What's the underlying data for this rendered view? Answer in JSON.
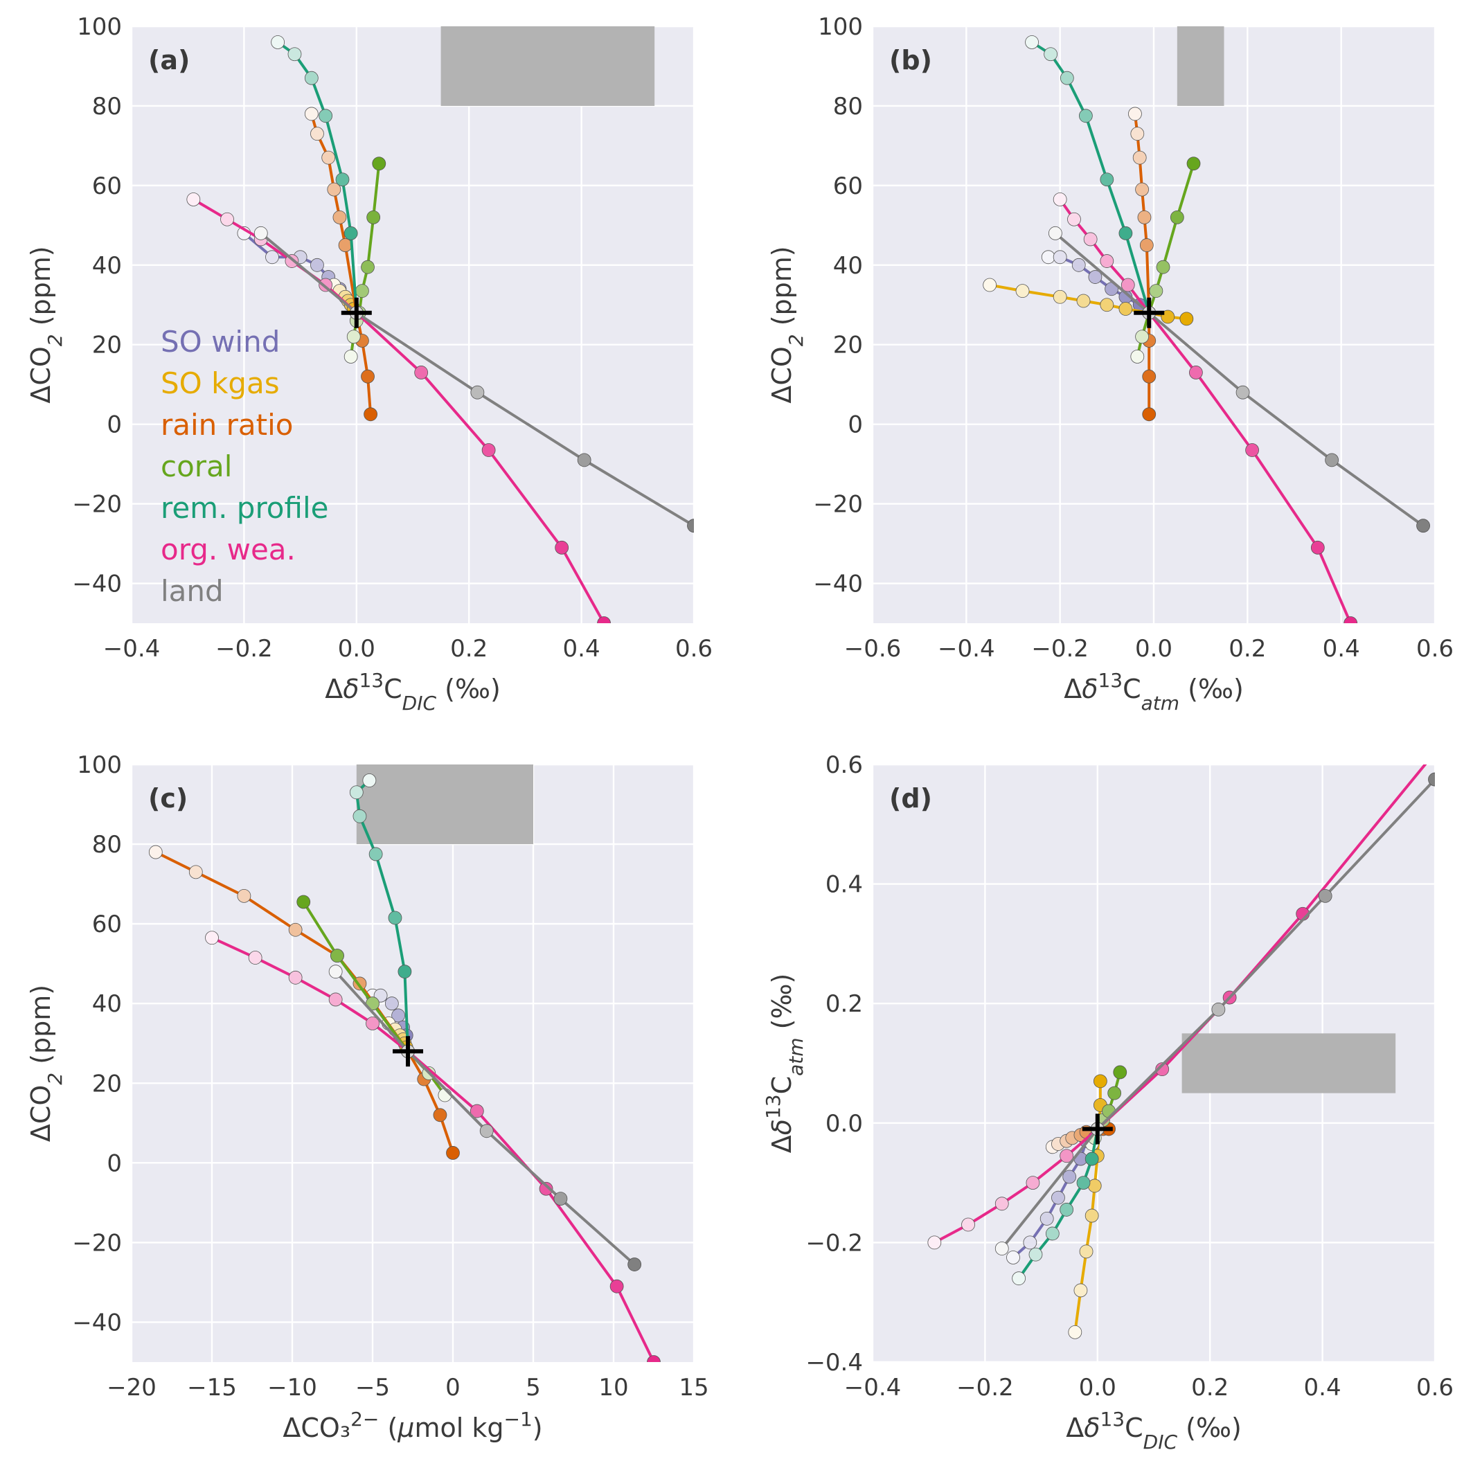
{
  "colors": {
    "so_wind": "#7570b3",
    "so_kgas": "#e6ab02",
    "rain_ratio": "#d95f02",
    "coral": "#66a61e",
    "rem_profile": "#1b9e77",
    "org_wea": "#e7298a",
    "land": "#808080",
    "panel_bg": "#eaeaf2",
    "grid": "#ffffff",
    "target_box": "#b3b3b3"
  },
  "legend": [
    {
      "key": "so_wind",
      "label": "SO wind"
    },
    {
      "key": "so_kgas",
      "label": "SO kgas"
    },
    {
      "key": "rain_ratio",
      "label": "rain ratio"
    },
    {
      "key": "coral",
      "label": "coral"
    },
    {
      "key": "rem_profile",
      "label": "rem. profile"
    },
    {
      "key": "org_wea",
      "label": "org. wea."
    },
    {
      "key": "land",
      "label": "land"
    }
  ],
  "chart_data": [
    {
      "type": "line",
      "panel_label": "(a)",
      "xlabel": "Δδ¹³C_DIC (‰)",
      "ylabel": "ΔCO₂ (ppm)",
      "xlim": [
        -0.4,
        0.6
      ],
      "ylim": [
        -50,
        100
      ],
      "xticks": [
        -0.4,
        -0.2,
        0.0,
        0.2,
        0.4,
        0.6
      ],
      "xtick_labels": [
        "−0.4",
        "−0.2",
        "0.0",
        "0.2",
        "0.4",
        "0.6"
      ],
      "yticks": [
        -40,
        -20,
        0,
        20,
        40,
        60,
        80,
        100
      ],
      "ytick_labels": [
        "−40",
        "−20",
        "0",
        "20",
        "40",
        "60",
        "80",
        "100"
      ],
      "target_box": {
        "x": [
          0.15,
          0.53
        ],
        "y": [
          80,
          100
        ]
      },
      "reference": {
        "x": 0.0,
        "y": 28
      },
      "show_legend": true,
      "series": [
        {
          "name": "SO wind",
          "x": [
            -0.2,
            -0.15,
            -0.1,
            -0.07,
            -0.05,
            -0.03,
            -0.02,
            -0.01,
            0.0
          ],
          "y": [
            48,
            42,
            42,
            40,
            37,
            34,
            32,
            30,
            28
          ]
        },
        {
          "name": "SO kgas",
          "x": [
            -0.04,
            -0.03,
            -0.02,
            -0.015,
            -0.01,
            -0.005,
            0.0
          ],
          "y": [
            35,
            33.5,
            32,
            31,
            30,
            29,
            28
          ]
        },
        {
          "name": "rain ratio",
          "x": [
            -0.08,
            -0.07,
            -0.05,
            -0.04,
            -0.03,
            -0.02,
            0.0,
            0.01,
            0.02,
            0.025
          ],
          "y": [
            78,
            73,
            67,
            59,
            52,
            45,
            28,
            21,
            12,
            2.5
          ]
        },
        {
          "name": "coral",
          "x": [
            -0.01,
            -0.005,
            0.0,
            0.005,
            0.01,
            0.02,
            0.03,
            0.04
          ],
          "y": [
            17,
            22,
            26,
            28,
            33.5,
            39.5,
            52,
            65.5
          ]
        },
        {
          "name": "rem. profile",
          "x": [
            -0.14,
            -0.11,
            -0.08,
            -0.055,
            -0.025,
            -0.01,
            0.0
          ],
          "y": [
            96,
            93,
            87,
            77.5,
            61.5,
            48,
            28
          ]
        },
        {
          "name": "org. wea.",
          "x": [
            -0.29,
            -0.23,
            -0.17,
            -0.115,
            -0.055,
            0.0,
            0.115,
            0.235,
            0.365,
            0.44
          ],
          "y": [
            56.5,
            51.5,
            46.5,
            41,
            35,
            28,
            13,
            -6.5,
            -31,
            -50
          ]
        },
        {
          "name": "land",
          "x": [
            -0.17,
            0.0,
            0.215,
            0.405,
            0.6
          ],
          "y": [
            48,
            28,
            8,
            -9,
            -25.5
          ]
        }
      ]
    },
    {
      "type": "line",
      "panel_label": "(b)",
      "xlabel": "Δδ¹³C_atm (‰)",
      "ylabel": "ΔCO₂ (ppm)",
      "xlim": [
        -0.6,
        0.6
      ],
      "ylim": [
        -50,
        100
      ],
      "xticks": [
        -0.6,
        -0.4,
        -0.2,
        0.0,
        0.2,
        0.4,
        0.6
      ],
      "xtick_labels": [
        "−0.6",
        "−0.4",
        "−0.2",
        "0.0",
        "0.2",
        "0.4",
        "0.6"
      ],
      "yticks": [
        -40,
        -20,
        0,
        20,
        40,
        60,
        80,
        100
      ],
      "ytick_labels": [
        "−40",
        "−20",
        "0",
        "20",
        "40",
        "60",
        "80",
        "100"
      ],
      "target_box": {
        "x": [
          0.05,
          0.15
        ],
        "y": [
          80,
          100
        ]
      },
      "reference": {
        "x": -0.01,
        "y": 28
      },
      "show_legend": false,
      "series": [
        {
          "name": "SO wind",
          "x": [
            -0.225,
            -0.2,
            -0.16,
            -0.125,
            -0.09,
            -0.06,
            -0.03,
            -0.01
          ],
          "y": [
            42,
            42,
            40,
            37,
            34,
            32,
            30,
            28
          ]
        },
        {
          "name": "SO kgas",
          "x": [
            -0.35,
            -0.28,
            -0.2,
            -0.15,
            -0.1,
            -0.06,
            -0.01,
            0.03,
            0.07
          ],
          "y": [
            35,
            33.5,
            32,
            31,
            30,
            29,
            28,
            27,
            26.5
          ]
        },
        {
          "name": "rain ratio",
          "x": [
            -0.04,
            -0.035,
            -0.03,
            -0.025,
            -0.02,
            -0.015,
            -0.01,
            -0.01,
            -0.01,
            -0.01
          ],
          "y": [
            78,
            73,
            67,
            59,
            52,
            45,
            28,
            21,
            12,
            2.5
          ]
        },
        {
          "name": "coral",
          "x": [
            -0.035,
            -0.025,
            -0.01,
            0.005,
            0.02,
            0.05,
            0.085
          ],
          "y": [
            17,
            22,
            28,
            33.5,
            39.5,
            52,
            65.5
          ]
        },
        {
          "name": "rem. profile",
          "x": [
            -0.26,
            -0.22,
            -0.185,
            -0.145,
            -0.1,
            -0.06,
            -0.01
          ],
          "y": [
            96,
            93,
            87,
            77.5,
            61.5,
            48,
            28
          ]
        },
        {
          "name": "org. wea.",
          "x": [
            -0.2,
            -0.17,
            -0.135,
            -0.1,
            -0.055,
            -0.01,
            0.09,
            0.21,
            0.35,
            0.42
          ],
          "y": [
            56.5,
            51.5,
            46.5,
            41,
            35,
            28,
            13,
            -6.5,
            -31,
            -50
          ]
        },
        {
          "name": "land",
          "x": [
            -0.21,
            -0.01,
            0.19,
            0.38,
            0.575
          ],
          "y": [
            48,
            28,
            8,
            -9,
            -25.5
          ]
        }
      ]
    },
    {
      "type": "line",
      "panel_label": "(c)",
      "xlabel": "ΔCO₃²⁻ (μmol kg⁻¹)",
      "ylabel": "ΔCO₂ (ppm)",
      "xlim": [
        -20,
        15
      ],
      "ylim": [
        -50,
        100
      ],
      "xticks": [
        -20,
        -15,
        -10,
        -5,
        0,
        5,
        10,
        15
      ],
      "xtick_labels": [
        "−20",
        "−15",
        "−10",
        "−5",
        "0",
        "5",
        "10",
        "15"
      ],
      "yticks": [
        -40,
        -20,
        0,
        20,
        40,
        60,
        80,
        100
      ],
      "ytick_labels": [
        "−40",
        "−20",
        "0",
        "20",
        "40",
        "60",
        "80",
        "100"
      ],
      "target_box": {
        "x": [
          -6,
          5
        ],
        "y": [
          80,
          100
        ]
      },
      "reference": {
        "x": -2.8,
        "y": 28
      },
      "show_legend": false,
      "series": [
        {
          "name": "SO wind",
          "x": [
            -5,
            -4.5,
            -3.8,
            -3.4,
            -3.1,
            -2.9,
            -2.8
          ],
          "y": [
            42,
            42,
            40,
            37,
            34,
            32,
            28
          ]
        },
        {
          "name": "SO kgas",
          "x": [
            -4,
            -3.6,
            -3.3,
            -3.1,
            -3.0,
            -2.9,
            -2.8
          ],
          "y": [
            35,
            33.5,
            32,
            31,
            30,
            29,
            28
          ]
        },
        {
          "name": "rain ratio",
          "x": [
            -18.5,
            -16,
            -13,
            -9.8,
            -7.2,
            -5.8,
            -2.8,
            -1.8,
            -0.8,
            0.0
          ],
          "y": [
            78,
            73,
            67,
            58.5,
            52,
            45,
            28,
            21,
            12,
            2.5
          ]
        },
        {
          "name": "coral",
          "x": [
            -0.5,
            -1.5,
            -2.8,
            -5,
            -7.2,
            -9.3
          ],
          "y": [
            17,
            22.5,
            28,
            40,
            52,
            65.5
          ]
        },
        {
          "name": "rem. profile",
          "x": [
            -5.2,
            -6.0,
            -5.8,
            -4.8,
            -3.6,
            -3.0,
            -2.8
          ],
          "y": [
            96,
            93,
            87,
            77.5,
            61.5,
            48,
            28
          ]
        },
        {
          "name": "org. wea.",
          "x": [
            -15,
            -12.3,
            -9.8,
            -7.3,
            -5,
            -2.8,
            1.5,
            5.8,
            10.2,
            12.5
          ],
          "y": [
            56.5,
            51.5,
            46.5,
            41,
            35,
            28,
            13,
            -6.5,
            -31,
            -50
          ]
        },
        {
          "name": "land",
          "x": [
            -7.3,
            -2.8,
            2.1,
            6.7,
            11.3
          ],
          "y": [
            48,
            28,
            8,
            -9,
            -25.5
          ]
        }
      ]
    },
    {
      "type": "line",
      "panel_label": "(d)",
      "xlabel": "Δδ¹³C_DIC (‰)",
      "ylabel": "Δδ¹³C_atm (‰)",
      "xlim": [
        -0.4,
        0.6
      ],
      "ylim": [
        -0.4,
        0.6
      ],
      "xticks": [
        -0.4,
        -0.2,
        0.0,
        0.2,
        0.4,
        0.6
      ],
      "xtick_labels": [
        "−0.4",
        "−0.2",
        "0.0",
        "0.2",
        "0.4",
        "0.6"
      ],
      "yticks": [
        -0.4,
        -0.2,
        0.0,
        0.2,
        0.4,
        0.6
      ],
      "ytick_labels": [
        "−0.4",
        "−0.2",
        "0.0",
        "0.2",
        "0.4",
        "0.6"
      ],
      "target_box": {
        "x": [
          0.15,
          0.53
        ],
        "y": [
          0.05,
          0.15
        ]
      },
      "reference": {
        "x": 0.0,
        "y": -0.01
      },
      "show_legend": false,
      "series": [
        {
          "name": "SO wind",
          "x": [
            -0.15,
            -0.12,
            -0.09,
            -0.07,
            -0.05,
            -0.03,
            -0.02,
            -0.01,
            0.0
          ],
          "y": [
            -0.225,
            -0.2,
            -0.16,
            -0.125,
            -0.09,
            -0.06,
            -0.03,
            -0.02,
            -0.01
          ]
        },
        {
          "name": "SO kgas",
          "x": [
            -0.04,
            -0.03,
            -0.02,
            -0.01,
            -0.005,
            0.0,
            0.005,
            0.005
          ],
          "y": [
            -0.35,
            -0.28,
            -0.215,
            -0.155,
            -0.105,
            -0.055,
            0.03,
            0.07
          ]
        },
        {
          "name": "rain ratio",
          "x": [
            -0.08,
            -0.07,
            -0.055,
            -0.045,
            -0.03,
            -0.02,
            0.0,
            0.01,
            0.02
          ],
          "y": [
            -0.04,
            -0.035,
            -0.03,
            -0.025,
            -0.02,
            -0.015,
            -0.01,
            -0.01,
            -0.01
          ]
        },
        {
          "name": "coral",
          "x": [
            -0.01,
            -0.005,
            0.0,
            0.01,
            0.02,
            0.03,
            0.04
          ],
          "y": [
            -0.035,
            -0.025,
            -0.01,
            0.005,
            0.02,
            0.05,
            0.085
          ]
        },
        {
          "name": "rem. profile",
          "x": [
            -0.14,
            -0.11,
            -0.08,
            -0.055,
            -0.025,
            -0.01,
            0.0
          ],
          "y": [
            -0.26,
            -0.22,
            -0.185,
            -0.145,
            -0.1,
            -0.06,
            -0.01
          ]
        },
        {
          "name": "org. wea.",
          "x": [
            -0.29,
            -0.23,
            -0.17,
            -0.115,
            -0.055,
            0.0,
            0.115,
            0.235,
            0.365,
            0.6
          ],
          "y": [
            -0.2,
            -0.17,
            -0.135,
            -0.1,
            -0.055,
            -0.01,
            0.09,
            0.21,
            0.35,
            0.62
          ]
        },
        {
          "name": "land",
          "x": [
            -0.17,
            0.0,
            0.215,
            0.405,
            0.6
          ],
          "y": [
            -0.21,
            -0.01,
            0.19,
            0.38,
            0.575
          ]
        }
      ]
    }
  ]
}
